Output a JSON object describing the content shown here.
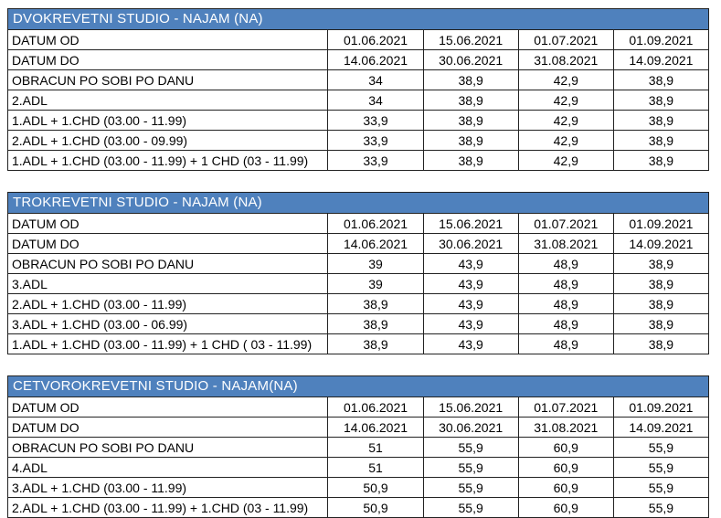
{
  "colors": {
    "header_bg": "#4F81BD",
    "header_text": "#FFFFFF",
    "border": "#222222",
    "body_text": "#000000",
    "page_bg": "#FFFFFF"
  },
  "tables": [
    {
      "title": "DVOKREVETNI STUDIO - NAJAM (NA)",
      "rows": [
        {
          "label": "DATUM OD",
          "values": [
            "01.06.2021",
            "15.06.2021",
            "01.07.2021",
            "01.09.2021"
          ]
        },
        {
          "label": "DATUM DO",
          "values": [
            "14.06.2021",
            "30.06.2021",
            "31.08.2021",
            "14.09.2021"
          ]
        },
        {
          "label": "OBRACUN PO SOBI PO DANU",
          "values": [
            "34",
            "38,9",
            "42,9",
            "38,9"
          ]
        },
        {
          "label": "2.ADL",
          "values": [
            "34",
            "38,9",
            "42,9",
            "38,9"
          ]
        },
        {
          "label": "1.ADL + 1.CHD (03.00 - 11.99)",
          "values": [
            "33,9",
            "38,9",
            "42,9",
            "38,9"
          ]
        },
        {
          "label": "2.ADL + 1.CHD (03.00 - 09.99)",
          "values": [
            "33,9",
            "38,9",
            "42,9",
            "38,9"
          ]
        },
        {
          "label": "1.ADL + 1.CHD (03.00 - 11.99) + 1 CHD (03 - 11.99)",
          "values": [
            "33,9",
            "38,9",
            "42,9",
            "38,9"
          ]
        }
      ]
    },
    {
      "title": "TROKREVETNI STUDIO - NAJAM (NA)",
      "rows": [
        {
          "label": "DATUM OD",
          "values": [
            "01.06.2021",
            "15.06.2021",
            "01.07.2021",
            "01.09.2021"
          ]
        },
        {
          "label": "DATUM DO",
          "values": [
            "14.06.2021",
            "30.06.2021",
            "31.08.2021",
            "14.09.2021"
          ]
        },
        {
          "label": "OBRACUN PO SOBI PO DANU",
          "values": [
            "39",
            "43,9",
            "48,9",
            "38,9"
          ]
        },
        {
          "label": "3.ADL",
          "values": [
            "39",
            "43,9",
            "48,9",
            "38,9"
          ]
        },
        {
          "label": "2.ADL + 1.CHD (03.00 - 11.99)",
          "values": [
            "38,9",
            "43,9",
            "48,9",
            "38,9"
          ]
        },
        {
          "label": "3.ADL + 1.CHD (03.00 - 06.99)",
          "values": [
            "38,9",
            "43,9",
            "48,9",
            "38,9"
          ]
        },
        {
          "label": "1.ADL + 1.CHD (03.00 - 11.99) + 1 CHD ( 03 - 11.99)",
          "values": [
            "38,9",
            "43,9",
            "48,9",
            "38,9"
          ]
        }
      ]
    },
    {
      "title": "CETVOROKREVETNI STUDIO - NAJAM(NA)",
      "rows": [
        {
          "label": "DATUM OD",
          "values": [
            "01.06.2021",
            "15.06.2021",
            "01.07.2021",
            "01.09.2021"
          ]
        },
        {
          "label": "DATUM DO",
          "values": [
            "14.06.2021",
            "30.06.2021",
            "31.08.2021",
            "14.09.2021"
          ]
        },
        {
          "label": "OBRACUN PO SOBI PO DANU",
          "values": [
            "51",
            "55,9",
            "60,9",
            "55,9"
          ]
        },
        {
          "label": "4.ADL",
          "values": [
            "51",
            "55,9",
            "60,9",
            "55,9"
          ]
        },
        {
          "label": "3.ADL + 1.CHD (03.00 - 11.99)",
          "values": [
            "50,9",
            "55,9",
            "60,9",
            "55,9"
          ]
        },
        {
          "label": "2.ADL + 1.CHD (03.00 - 11.99) + 1.CHD (03 - 11.99)",
          "values": [
            "50,9",
            "55,9",
            "60,9",
            "55,9"
          ]
        }
      ]
    }
  ]
}
